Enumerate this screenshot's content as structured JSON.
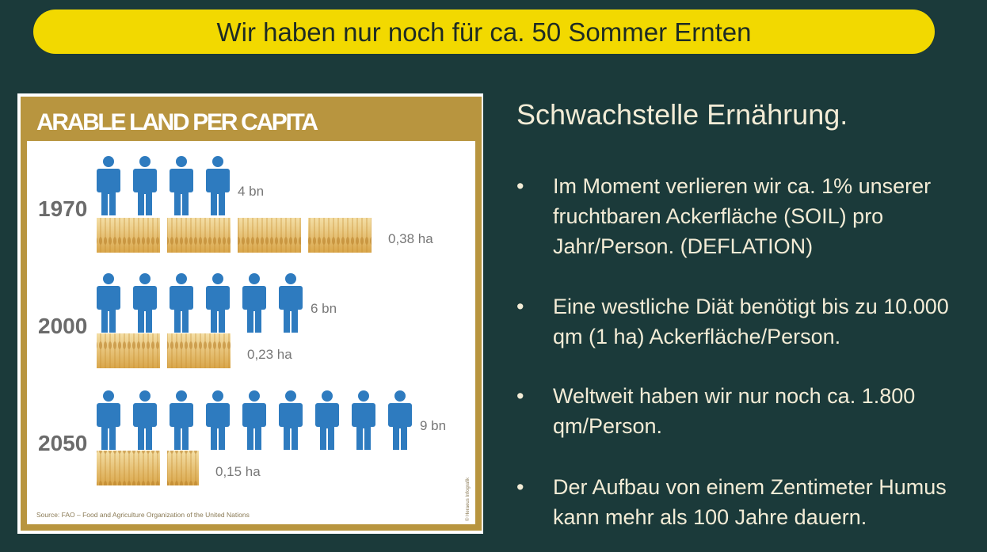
{
  "header": {
    "title": "Wir haben nur noch für ca. 50 Sommer Ernten"
  },
  "infographic": {
    "title": "ARABLE LAND PER CAPITA",
    "rows": [
      {
        "year": "1970",
        "population": "4 bn",
        "land": "0,38 ha",
        "people_icons": 4,
        "field_icons": 4
      },
      {
        "year": "2000",
        "population": "6 bn",
        "land": "0,23 ha",
        "people_icons": 6,
        "field_icons": 2
      },
      {
        "year": "2050",
        "population": "9 bn",
        "land": "0,15 ha",
        "people_icons": 9,
        "field_icons": 1.5
      }
    ],
    "source": "Source: FAO – Food and Agriculture Organization of the United Nations",
    "credit": "© Heraeus Infografik"
  },
  "panel": {
    "heading": "Schwachstelle Ernährung.",
    "bullets": [
      {
        "lines": [
          "Im Moment verlieren wir ca. 1% unserer",
          "fruchtbaren Ackerfläche (SOIL) pro",
          "Jahr/Person. (DEFLATION)"
        ]
      },
      {
        "lines": [
          "Eine westliche Diät benötigt bis zu 10.000",
          "qm (1 ha) Ackerfläche/Person."
        ]
      },
      {
        "lines": [
          "Weltweit haben wir nur noch ca. 1.800",
          "qm/Person."
        ]
      },
      {
        "lines": [
          "Der Aufbau von einem Zentimeter Humus",
          "kann mehr als 100 Jahre dauern."
        ]
      }
    ]
  }
}
